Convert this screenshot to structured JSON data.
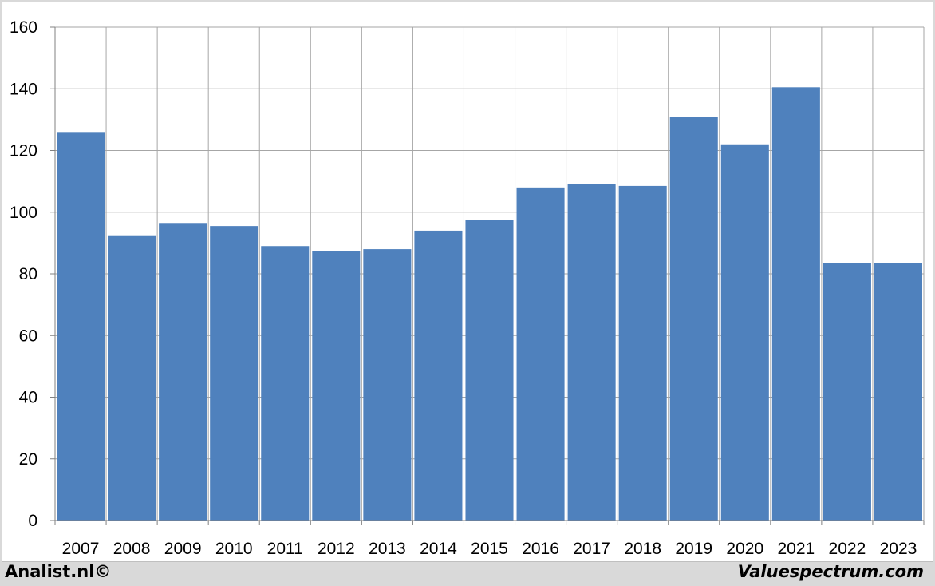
{
  "chart_data": {
    "type": "bar",
    "categories": [
      "2007",
      "2008",
      "2009",
      "2010",
      "2011",
      "2012",
      "2013",
      "2014",
      "2015",
      "2016",
      "2017",
      "2018",
      "2019",
      "2020",
      "2021",
      "2022",
      "2023"
    ],
    "values": [
      126,
      92.5,
      96.5,
      95.5,
      89,
      87.5,
      88,
      94,
      97.5,
      108,
      109,
      108.5,
      131,
      122,
      140.5,
      83.5,
      83.5
    ],
    "ylim": [
      0,
      160
    ],
    "yticks": [
      0,
      20,
      40,
      60,
      80,
      100,
      120,
      140,
      160
    ],
    "grid": true,
    "bar_color": "#4f81bd",
    "grid_color": "#a6a6a6",
    "title": "",
    "xlabel": "",
    "ylabel": ""
  },
  "footer": {
    "left_text": "Analist.nl©",
    "right_text": "Valuespectrum.com"
  }
}
